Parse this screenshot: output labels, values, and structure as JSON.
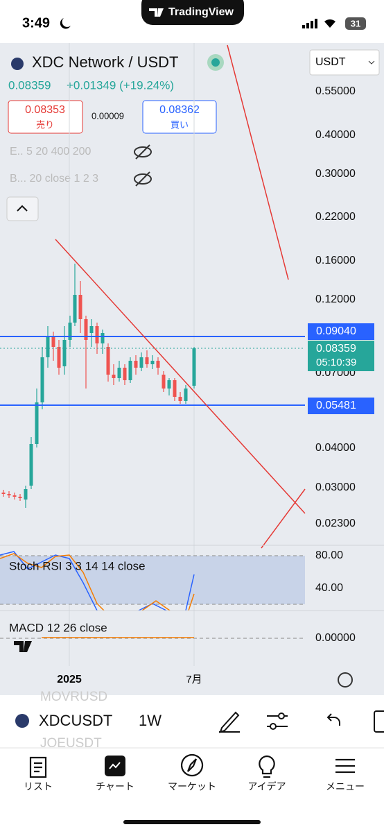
{
  "status_bar": {
    "time": "3:49",
    "app": "TradingView",
    "battery": "31"
  },
  "header": {
    "symbol_name": "XDC Network / USDT",
    "currency": "USDT",
    "last": "0.08359",
    "change": "+0.01349 (+19.24%)"
  },
  "trade": {
    "sell_price": "0.08353",
    "sell_label": "売り",
    "spread": "0.00009",
    "buy_price": "0.08362",
    "buy_label": "買い"
  },
  "indicators": [
    "E.. 5 20 400 200",
    "B... 20 close 1 2 3"
  ],
  "price_axis": [
    "0.55000",
    "0.40000",
    "0.30000",
    "0.22000",
    "0.16000",
    "0.12000",
    "0.07000",
    "0.04000",
    "0.03000",
    "0.02300"
  ],
  "price_tags": {
    "upper_line": "0.09040",
    "current": "0.08359",
    "countdown": "05:10:39",
    "lower_line": "0.05481"
  },
  "stoch": {
    "label": "Stoch RSI 3 3 14 14 close",
    "levels": [
      "80.00",
      "40.00"
    ]
  },
  "macd": {
    "label": "MACD 12 26 close",
    "level": "0.00000"
  },
  "time_axis": [
    "2025",
    "7月"
  ],
  "symbol_bar": {
    "symbol": "XDCUSDT",
    "interval": "1W",
    "behind": [
      "MOVRUSD",
      "JOEUSDT"
    ]
  },
  "tabs": [
    "リスト",
    "チャート",
    "マーケット",
    "アイデア",
    "メニュー"
  ]
}
